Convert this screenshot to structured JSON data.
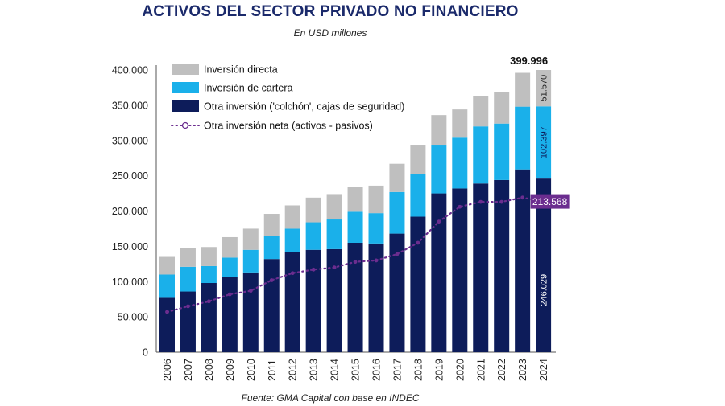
{
  "chart_data": {
    "type": "bar",
    "stacked": true,
    "title": "ACTIVOS DEL SECTOR PRIVADO NO FINANCIERO",
    "subtitle": "En USD millones",
    "source": "Fuente: GMA Capital con base en INDEC",
    "categories": [
      "2006",
      "2007",
      "2008",
      "2009",
      "2010",
      "2011",
      "2012",
      "2013",
      "2014",
      "2015",
      "2016",
      "2017",
      "2018",
      "2019",
      "2020",
      "2021",
      "2022",
      "2023",
      "2024"
    ],
    "ylim": [
      0,
      400000
    ],
    "yticks": [
      "0",
      "50.000",
      "100.000",
      "150.000",
      "200.000",
      "250.000",
      "300.000",
      "350.000",
      "400.000"
    ],
    "grid": false,
    "legend_position": "top-left",
    "series": [
      {
        "name": "Otra inversión ('colchón', cajas de seguridad)",
        "color": "#0d1c5a",
        "values": [
          77000,
          86000,
          98000,
          106000,
          113000,
          132000,
          142000,
          145000,
          146000,
          155000,
          154000,
          168000,
          192000,
          225000,
          232000,
          239000,
          244000,
          259000,
          246029
        ]
      },
      {
        "name": "Inversión de cartera",
        "color": "#1ab0ea",
        "values": [
          33000,
          35000,
          24000,
          28000,
          32000,
          33000,
          33000,
          39000,
          42000,
          44000,
          43000,
          59000,
          60000,
          69000,
          72000,
          81000,
          80000,
          89000,
          102397
        ]
      },
      {
        "name": "Inversión directa",
        "color": "#bfbfbf",
        "values": [
          25000,
          27000,
          27000,
          29000,
          30000,
          31000,
          33000,
          35000,
          36000,
          35000,
          39000,
          40000,
          42000,
          42000,
          40000,
          43000,
          45000,
          48000,
          51570
        ]
      }
    ],
    "line_series": {
      "name": "Otra inversión neta (activos - pasivos)",
      "color": "#6b2d8f",
      "values": [
        57000,
        65000,
        72000,
        82000,
        87000,
        102000,
        112000,
        117000,
        120000,
        128000,
        130000,
        139000,
        155000,
        185000,
        206000,
        213000,
        213000,
        219000,
        213568
      ]
    },
    "annotations": {
      "total_2024": "399.996",
      "directa_2024": "51.570",
      "cartera_2024": "102.397",
      "otra_2024": "246.029",
      "neta_2024": "213.568"
    }
  }
}
